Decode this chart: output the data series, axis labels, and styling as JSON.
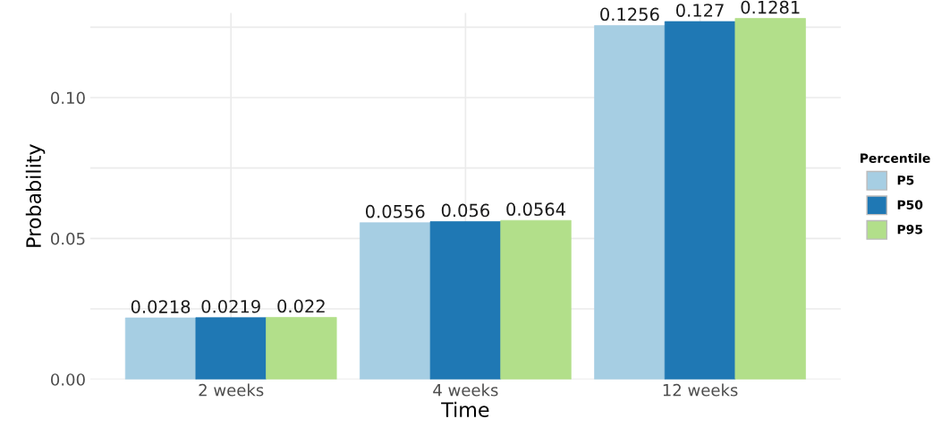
{
  "chart_data": {
    "type": "bar",
    "xlabel": "Time",
    "ylabel": "Probability",
    "legend_title": "Percentile",
    "categories": [
      "2 weeks",
      "4 weeks",
      "12 weeks"
    ],
    "series": [
      {
        "name": "P5",
        "color": "#a6cee3",
        "values": [
          0.0218,
          0.0556,
          0.1256
        ]
      },
      {
        "name": "P50",
        "color": "#1f78b4",
        "values": [
          0.0219,
          0.056,
          0.127
        ]
      },
      {
        "name": "P95",
        "color": "#b2df8a",
        "values": [
          0.022,
          0.0564,
          0.1281
        ]
      }
    ],
    "ylim": [
      0,
      0.13
    ],
    "yticks": [
      {
        "value": 0,
        "label": "0.00"
      },
      {
        "value": 0.025,
        "label": null
      },
      {
        "value": 0.05,
        "label": "0.05"
      },
      {
        "value": 0.075,
        "label": null
      },
      {
        "value": 0.1,
        "label": "0.10"
      },
      {
        "value": 0.125,
        "label": null
      }
    ],
    "grid": true,
    "legend": "right",
    "data_labels": true
  }
}
